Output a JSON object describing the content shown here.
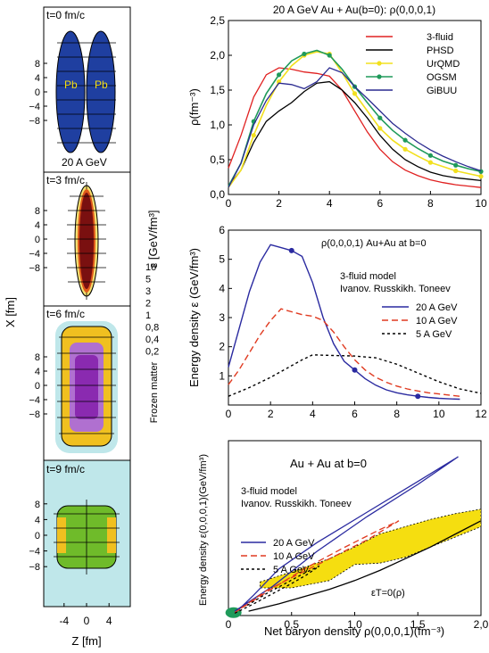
{
  "colors": {
    "three_fluid": "#e02020",
    "phsd": "#000000",
    "urqmd": "#f2e01e",
    "ogsm": "#1f9a5a",
    "gibuu": "#2a2a90",
    "blue_curve": "#2a2aa0",
    "red_curve": "#e03a20",
    "black_curve": "#000000",
    "band_fill": "#f5de10",
    "pb_fill": "#1f3fa0",
    "halo": "#bfe7ea",
    "c10": "#7a1010",
    "c5": "#c0281a",
    "c3": "#e05a1a",
    "c2": "#f0c020",
    "c1": "#f5e070",
    "c08": "#8a2ab0",
    "c04": "#b070d0",
    "green": "#6fbb2a"
  },
  "left": {
    "ylabel": "X [fm]",
    "xlabel": "Z [fm]",
    "xticks": [
      "-4",
      "0",
      "4"
    ],
    "yticks": [
      "8",
      "4",
      "0",
      "−4",
      "−8"
    ],
    "panels": [
      {
        "t_label": "t=0 fm/c",
        "nucleus_label_left": "Pb",
        "nucleus_label_right": "Pb",
        "energy_label": "20 A GeV"
      },
      {
        "t_label": "t=3 fm/c"
      },
      {
        "t_label": "t=6 fm/c"
      },
      {
        "t_label": "t=9 fm/c"
      }
    ],
    "scale": {
      "title": "ε [GeV/fm³]",
      "values": [
        "10",
        "5",
        "3",
        "2",
        "1",
        "0,8",
        "0,4",
        "0,2"
      ],
      "frozen_label": "Frozen matter"
    }
  },
  "chart_data": [
    {
      "type": "line",
      "title": "20 A GeV Au + Au(b=0): ρ(0,0,0,1)",
      "xlabel": "",
      "ylabel": "ρ(fm⁻³)",
      "xlim": [
        0,
        10
      ],
      "ylim": [
        0,
        2.5
      ],
      "xticks": [
        "0",
        "2",
        "4",
        "6",
        "8",
        "10"
      ],
      "yticks": [
        "0,0",
        "0,5",
        "1,0",
        "1,5",
        "2,0",
        "2,5"
      ],
      "legend": "top-right",
      "series": [
        {
          "name": "3-fluid",
          "x": [
            0,
            0.5,
            1,
            1.5,
            2,
            2.5,
            3,
            3.5,
            4,
            4.5,
            5,
            5.5,
            6,
            6.5,
            7,
            7.5,
            8,
            8.5,
            9,
            9.5,
            10
          ],
          "values": [
            0.38,
            0.85,
            1.4,
            1.72,
            1.82,
            1.8,
            1.76,
            1.74,
            1.7,
            1.5,
            1.2,
            0.9,
            0.65,
            0.47,
            0.35,
            0.27,
            0.21,
            0.17,
            0.14,
            0.12,
            0.1
          ]
        },
        {
          "name": "PHSD",
          "x": [
            0,
            0.5,
            1,
            1.5,
            2,
            2.5,
            3,
            3.5,
            4,
            4.5,
            5,
            5.5,
            6,
            6.5,
            7,
            7.5,
            8,
            8.5,
            9,
            9.5,
            10
          ],
          "values": [
            0.12,
            0.35,
            0.75,
            1.05,
            1.2,
            1.32,
            1.48,
            1.6,
            1.62,
            1.5,
            1.32,
            1.1,
            0.85,
            0.65,
            0.5,
            0.4,
            0.32,
            0.27,
            0.24,
            0.22,
            0.2
          ]
        },
        {
          "name": "UrQMD",
          "x": [
            0,
            0.5,
            1,
            1.5,
            2,
            2.5,
            3,
            3.5,
            4,
            4.5,
            5,
            5.5,
            6,
            6.5,
            7,
            7.5,
            8,
            8.5,
            9,
            9.5,
            10
          ],
          "values": [
            0.1,
            0.35,
            0.85,
            1.28,
            1.62,
            1.85,
            2.0,
            2.05,
            2.02,
            1.75,
            1.45,
            1.2,
            0.95,
            0.78,
            0.65,
            0.55,
            0.46,
            0.4,
            0.34,
            0.3,
            0.26
          ]
        },
        {
          "name": "OGSM",
          "x": [
            0,
            0.5,
            1,
            1.5,
            2,
            2.5,
            3,
            3.5,
            4,
            4.5,
            5,
            5.5,
            6,
            6.5,
            7,
            7.5,
            8,
            8.5,
            9,
            9.5,
            10
          ],
          "values": [
            0.12,
            0.45,
            1.05,
            1.45,
            1.72,
            1.92,
            2.02,
            2.07,
            2.0,
            1.8,
            1.55,
            1.32,
            1.1,
            0.92,
            0.78,
            0.66,
            0.56,
            0.48,
            0.42,
            0.37,
            0.33
          ]
        },
        {
          "name": "GiBUU",
          "x": [
            0,
            0.5,
            1,
            1.5,
            2,
            2.5,
            3,
            3.5,
            4,
            4.5,
            5,
            5.5,
            6,
            6.5,
            7,
            7.5,
            8,
            8.5,
            9,
            9.5,
            10
          ],
          "values": [
            0.1,
            0.45,
            1.0,
            1.35,
            1.6,
            1.58,
            1.52,
            1.62,
            1.82,
            1.75,
            1.55,
            1.38,
            1.2,
            1.02,
            0.88,
            0.75,
            0.64,
            0.55,
            0.47,
            0.4,
            0.34
          ]
        }
      ]
    },
    {
      "type": "line",
      "title": "",
      "annotation": "ρ(0,0,0,1) Au+Au at b=0",
      "model_line1": "3-fluid model",
      "model_line2": "Ivanov. Russkikh. Toneev",
      "xlabel": "",
      "ylabel": "Energy density ε (GeV/fm³)",
      "xlim": [
        0,
        12
      ],
      "ylim": [
        0,
        6
      ],
      "xticks": [
        "0",
        "2",
        "4",
        "6",
        "8",
        "10",
        "12"
      ],
      "yticks": [
        "1",
        "2",
        "3",
        "4",
        "5",
        "6"
      ],
      "legend": "right",
      "series": [
        {
          "name": "20 A GeV",
          "x": [
            0,
            0.5,
            1,
            1.5,
            2,
            2.5,
            3,
            3.5,
            4,
            4.5,
            5,
            5.5,
            6,
            6.5,
            7,
            7.5,
            8,
            8.5,
            9,
            9.5,
            10,
            10.5,
            11
          ],
          "values": [
            1.3,
            2.6,
            3.9,
            4.9,
            5.5,
            5.4,
            5.3,
            5.1,
            4.2,
            3.0,
            2.1,
            1.5,
            1.2,
            0.9,
            0.68,
            0.52,
            0.42,
            0.35,
            0.3,
            0.26,
            0.23,
            0.21,
            0.2
          ],
          "markers_x": [
            3,
            6,
            9
          ]
        },
        {
          "name": "10 A GeV",
          "x": [
            0,
            0.5,
            1,
            1.5,
            2,
            2.5,
            3,
            3.5,
            4,
            4.5,
            5,
            5.5,
            6,
            6.5,
            7,
            7.5,
            8,
            8.5,
            9,
            9.5,
            10,
            10.5,
            11
          ],
          "values": [
            0.7,
            1.2,
            1.8,
            2.4,
            2.9,
            3.3,
            3.2,
            3.1,
            3.05,
            2.9,
            2.5,
            2.0,
            1.55,
            1.2,
            0.95,
            0.78,
            0.65,
            0.55,
            0.48,
            0.42,
            0.38,
            0.34,
            0.3
          ]
        },
        {
          "name": "5 A GeV",
          "x": [
            0,
            1,
            2,
            3,
            3.5,
            4,
            5,
            6,
            7,
            8,
            9,
            10,
            11,
            12
          ],
          "values": [
            0.3,
            0.6,
            0.95,
            1.35,
            1.55,
            1.72,
            1.7,
            1.68,
            1.62,
            1.4,
            1.1,
            0.8,
            0.55,
            0.4
          ]
        }
      ]
    },
    {
      "type": "line",
      "title": "Au + Au at b=0",
      "model_line1": "3-fluid model",
      "model_line2": "Ivanov. Russkikh. Toneev",
      "annotation": "εT=0(ρ)",
      "xlabel": "Net baryon density ρ(0,0,0,1)(fm⁻³)",
      "ylabel": "Energy density ε(0,0,0,1)(GeV/fm³)",
      "xlim": [
        0,
        2
      ],
      "ylim": [
        0,
        6
      ],
      "xticks": [
        "0",
        "0,5",
        "1,0",
        "1,5",
        "2,0"
      ],
      "legend": "left",
      "series": [
        {
          "name": "20 A GeV",
          "x": [
            0.05,
            0.35,
            0.7,
            1.1,
            1.5,
            1.82,
            1.5,
            1.1,
            0.7,
            0.4,
            0.2,
            0.08
          ],
          "values": [
            0.15,
            1.0,
            2.2,
            3.4,
            4.5,
            5.45,
            4.6,
            3.55,
            2.5,
            1.6,
            0.7,
            0.2
          ]
        },
        {
          "name": "10 A GeV",
          "x": [
            0.05,
            0.3,
            0.6,
            0.9,
            1.2,
            1.35,
            1.1,
            0.8,
            0.5,
            0.3,
            0.1
          ],
          "values": [
            0.1,
            0.8,
            1.6,
            2.3,
            2.95,
            3.25,
            2.6,
            1.95,
            1.3,
            0.85,
            0.25
          ]
        },
        {
          "name": "5 A GeV",
          "x": [
            0.05,
            0.2,
            0.35,
            0.5,
            0.62,
            0.72,
            0.6,
            0.45,
            0.3,
            0.15
          ],
          "values": [
            0.08,
            0.4,
            0.75,
            1.1,
            1.4,
            1.7,
            1.45,
            1.1,
            0.75,
            0.35
          ]
        },
        {
          "name": "εT=0(ρ)",
          "x": [
            0.16,
            0.4,
            0.6,
            0.8,
            1.0,
            1.2,
            1.4,
            1.6,
            1.8,
            2.0
          ],
          "values": [
            0.15,
            0.4,
            0.65,
            0.9,
            1.2,
            1.55,
            1.95,
            2.35,
            2.8,
            3.25
          ]
        }
      ],
      "band": {
        "upper_x": [
          0.25,
          0.5,
          0.8,
          1.0,
          1.2,
          1.4,
          1.6,
          1.8,
          2.0
        ],
        "upper_y": [
          1.15,
          1.5,
          1.95,
          2.35,
          2.8,
          3.05,
          3.3,
          3.5,
          3.65
        ],
        "lower_x": [
          2.0,
          1.8,
          1.6,
          1.4,
          1.2,
          1.0,
          0.8,
          0.5,
          0.25
        ],
        "lower_y": [
          3.05,
          2.7,
          2.35,
          2.0,
          1.8,
          1.75,
          1.2,
          0.95,
          0.95
        ]
      }
    }
  ]
}
